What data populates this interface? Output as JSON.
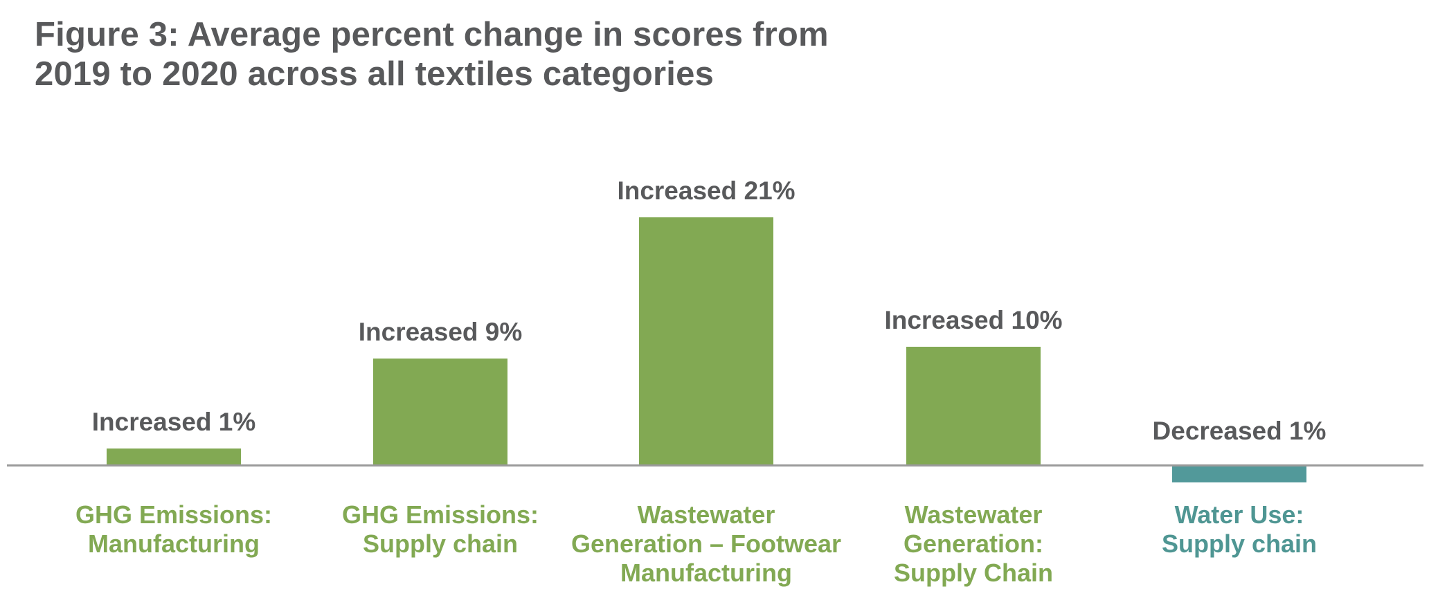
{
  "figure": {
    "title_lines": [
      "Figure 3: Average percent change in scores from",
      "2019 to 2020 across all textiles categories"
    ]
  },
  "colors": {
    "increase_bar": "#82A953",
    "decrease_bar": "#52999A",
    "title_text": "#58595B",
    "value_label_text": "#58595B",
    "increase_label_text": "#82A953",
    "decrease_label_text": "#4F9693",
    "axis_line": "#9A9A9A"
  },
  "chart_data": {
    "type": "bar",
    "title": "Figure 3: Average percent change in scores from 2019 to 2020 across all textiles categories",
    "xlabel": "",
    "ylabel": "",
    "unit": "percent change in scores, 2019 to 2020",
    "ylim": [
      -2,
      22
    ],
    "grid": false,
    "legend": null,
    "categories": [
      "GHG Emissions: Manufacturing",
      "GHG Emissions: Supply chain",
      "Wastewater Generation – Footwear Manufacturing",
      "Wastewater Generation: Supply Chain",
      "Water Use: Supply chain"
    ],
    "values": [
      1,
      9,
      21,
      10,
      -1
    ],
    "bars": [
      {
        "value": 1,
        "direction": "increase",
        "value_label": "Increased 1%",
        "category_lines": [
          "GHG Emissions:",
          "Manufacturing"
        ]
      },
      {
        "value": 9,
        "direction": "increase",
        "value_label": "Increased 9%",
        "category_lines": [
          "GHG Emissions:",
          "Supply chain"
        ]
      },
      {
        "value": 21,
        "direction": "increase",
        "value_label": "Increased 21%",
        "category_lines": [
          "Wastewater",
          "Generation – Footwear",
          "Manufacturing"
        ]
      },
      {
        "value": 10,
        "direction": "increase",
        "value_label": "Increased 10%",
        "category_lines": [
          "Wastewater",
          "Generation:",
          "Supply Chain"
        ]
      },
      {
        "value": -1,
        "direction": "decrease",
        "value_label": "Decreased 1%",
        "category_lines": [
          "Water Use:",
          "Supply chain"
        ]
      }
    ]
  }
}
